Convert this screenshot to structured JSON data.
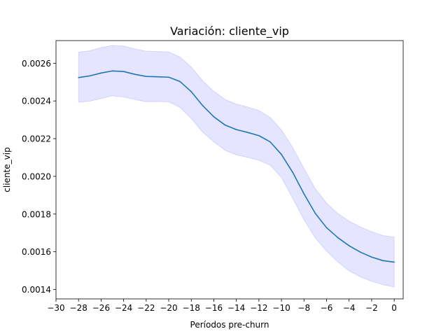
{
  "chart_data": {
    "type": "line",
    "title": "Variación: cliente_vip",
    "xlabel": "Períodos pre-churn",
    "ylabel": "cliente_vip",
    "xlim": [
      -30,
      0.8
    ],
    "ylim": [
      0.00135,
      0.00272
    ],
    "xticks": [
      -30,
      -28,
      -26,
      -24,
      -22,
      -20,
      -18,
      -16,
      -14,
      -12,
      -10,
      -8,
      -6,
      -4,
      -2,
      0
    ],
    "xtick_labels": [
      "−30",
      "−28",
      "−26",
      "−24",
      "−22",
      "−20",
      "−18",
      "−16",
      "−14",
      "−12",
      "−10",
      "−8",
      "−6",
      "−4",
      "−2",
      "0"
    ],
    "yticks": [
      0.0014,
      0.0016,
      0.0018,
      0.002,
      0.0022,
      0.0024,
      0.0026
    ],
    "ytick_labels": [
      "0.0014",
      "0.0016",
      "0.0018",
      "0.0020",
      "0.0022",
      "0.0024",
      "0.0026"
    ],
    "grid": false,
    "colors": {
      "line": "#1f77b4",
      "band": "#0000ff",
      "band_opacity": 0.1
    },
    "x": [
      -28,
      -27,
      -26,
      -25,
      -24,
      -23,
      -22,
      -21,
      -20,
      -19,
      -18,
      -17,
      -16,
      -15,
      -14,
      -13,
      -12,
      -11,
      -10,
      -9,
      -8,
      -7,
      -6,
      -5,
      -4,
      -3,
      -2,
      -1,
      0
    ],
    "series": [
      {
        "values": [
          0.002524,
          0.002533,
          0.002548,
          0.002559,
          0.002556,
          0.002541,
          0.00253,
          0.002528,
          0.002526,
          0.002503,
          0.002449,
          0.002376,
          0.002316,
          0.002272,
          0.002248,
          0.002233,
          0.002216,
          0.002183,
          0.002116,
          0.002021,
          0.001907,
          0.001804,
          0.001728,
          0.001675,
          0.001632,
          0.001598,
          0.001572,
          0.001553,
          0.001545
        ],
        "lower": [
          0.002393,
          0.002399,
          0.002413,
          0.002427,
          0.002421,
          0.002407,
          0.002396,
          0.002397,
          0.002395,
          0.002366,
          0.002307,
          0.002235,
          0.002183,
          0.002138,
          0.002114,
          0.002101,
          0.002085,
          0.002059,
          0.001994,
          0.001883,
          0.00177,
          0.001673,
          0.001604,
          0.001546,
          0.001499,
          0.001467,
          0.001443,
          0.001425,
          0.001413
        ],
        "upper": [
          0.002659,
          0.002666,
          0.002683,
          0.002694,
          0.002691,
          0.002676,
          0.002664,
          0.002662,
          0.00266,
          0.002633,
          0.00258,
          0.002508,
          0.002451,
          0.002408,
          0.002383,
          0.002368,
          0.002349,
          0.002312,
          0.002246,
          0.002153,
          0.002041,
          0.001935,
          0.001858,
          0.001803,
          0.001763,
          0.001731,
          0.001707,
          0.001686,
          0.001678
        ]
      }
    ]
  }
}
